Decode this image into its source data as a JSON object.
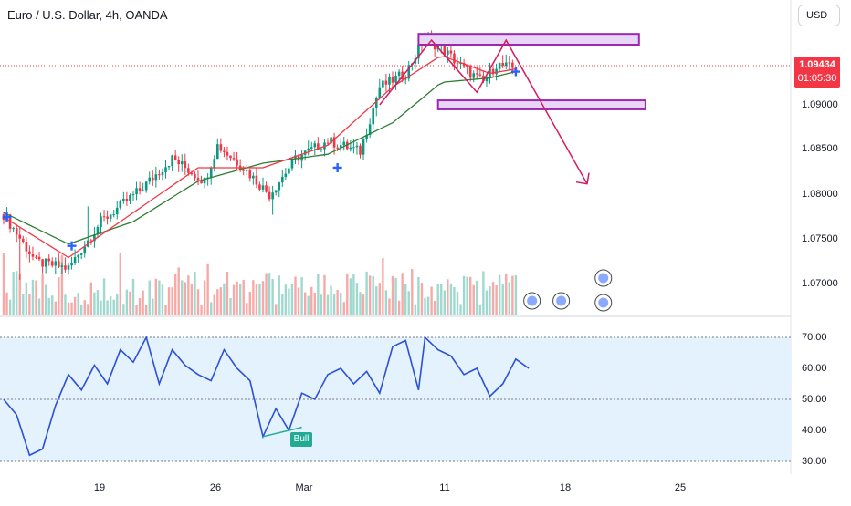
{
  "header": {
    "title": "Euro / U.S. Dollar, 4h, OANDA",
    "currency_button": "USD"
  },
  "price_badge": {
    "price": "1.09434",
    "countdown": "01:05:30",
    "color": "#f23645"
  },
  "colors": {
    "candle_up": "#089981",
    "candle_down": "#f23645",
    "ma_fast": "#f23645",
    "ma_slow": "#2e7d32",
    "rsi_line": "#2d50d6",
    "rsi_band": "#e3f2fd",
    "zone_border": "#9c27b0",
    "zone_fill": "#e8d6f7",
    "arrow": "#d81b60"
  },
  "chart_data": [
    {
      "type": "candlestick",
      "title": "Euro / U.S. Dollar, 4h, OANDA",
      "symbol": "EURUSD",
      "y_ticks": [
        "1.09000",
        "1.08500",
        "1.08000",
        "1.07500",
        "1.07000"
      ],
      "ylim": [
        1.0645,
        1.1005
      ],
      "x_ticks": [
        "19",
        "26",
        "Mar",
        "11",
        "18",
        "25"
      ],
      "current_price": 1.09434,
      "trend_path": [
        {
          "bar": 0,
          "close": 1.0778
        },
        {
          "bar": 10,
          "close": 1.0725
        },
        {
          "bar": 20,
          "close": 1.0718
        },
        {
          "bar": 30,
          "close": 1.077
        },
        {
          "bar": 42,
          "close": 1.0805
        },
        {
          "bar": 52,
          "close": 1.084
        },
        {
          "bar": 62,
          "close": 1.0815
        },
        {
          "bar": 66,
          "close": 1.0855
        },
        {
          "bar": 74,
          "close": 1.083
        },
        {
          "bar": 82,
          "close": 1.08
        },
        {
          "bar": 90,
          "close": 1.084
        },
        {
          "bar": 100,
          "close": 1.086
        },
        {
          "bar": 110,
          "close": 1.0848
        },
        {
          "bar": 116,
          "close": 1.092
        },
        {
          "bar": 124,
          "close": 1.0935
        },
        {
          "bar": 130,
          "close": 1.0975
        },
        {
          "bar": 136,
          "close": 1.096
        },
        {
          "bar": 142,
          "close": 1.094
        },
        {
          "bar": 148,
          "close": 1.0925
        },
        {
          "bar": 152,
          "close": 1.0945
        },
        {
          "bar": 158,
          "close": 1.094
        }
      ],
      "ma_fast_path": [
        {
          "bar": 0,
          "value": 1.0775
        },
        {
          "bar": 20,
          "value": 1.073
        },
        {
          "bar": 40,
          "value": 1.078
        },
        {
          "bar": 60,
          "value": 1.083
        },
        {
          "bar": 80,
          "value": 1.083
        },
        {
          "bar": 100,
          "value": 1.0855
        },
        {
          "bar": 120,
          "value": 1.092
        },
        {
          "bar": 135,
          "value": 1.0955
        },
        {
          "bar": 150,
          "value": 1.0935
        },
        {
          "bar": 158,
          "value": 1.094
        }
      ],
      "ma_slow_path": [
        {
          "bar": 0,
          "value": 1.078
        },
        {
          "bar": 20,
          "value": 1.0745
        },
        {
          "bar": 40,
          "value": 1.077
        },
        {
          "bar": 60,
          "value": 1.0815
        },
        {
          "bar": 80,
          "value": 1.0835
        },
        {
          "bar": 100,
          "value": 1.0845
        },
        {
          "bar": 120,
          "value": 1.088
        },
        {
          "bar": 135,
          "value": 1.0925
        },
        {
          "bar": 150,
          "value": 1.093
        },
        {
          "bar": 158,
          "value": 1.0937
        }
      ],
      "zones": [
        {
          "name": "resistance",
          "from_bar": 128,
          "to_bar": 196,
          "low": 1.0967,
          "high": 1.0979
        },
        {
          "name": "support",
          "from_bar": 134,
          "to_bar": 198,
          "low": 1.0895,
          "high": 1.0905
        }
      ],
      "pattern_lines": [
        {
          "bar": 116,
          "price": 1.09
        },
        {
          "bar": 132,
          "price": 1.0972
        },
        {
          "bar": 146,
          "price": 1.0914
        },
        {
          "bar": 155,
          "price": 1.0972
        },
        {
          "bar": 180,
          "price": 1.0812
        }
      ]
    },
    {
      "type": "line",
      "name": "RSI",
      "y_ticks": [
        "70.00",
        "60.00",
        "50.00",
        "40.00",
        "30.00"
      ],
      "ylim": [
        30,
        70
      ],
      "band": [
        30,
        70
      ],
      "label": "Bull",
      "points": [
        {
          "bar": 0,
          "value": 50
        },
        {
          "bar": 4,
          "value": 45
        },
        {
          "bar": 8,
          "value": 32
        },
        {
          "bar": 12,
          "value": 34
        },
        {
          "bar": 16,
          "value": 48
        },
        {
          "bar": 20,
          "value": 58
        },
        {
          "bar": 24,
          "value": 53
        },
        {
          "bar": 28,
          "value": 61
        },
        {
          "bar": 32,
          "value": 55
        },
        {
          "bar": 36,
          "value": 66
        },
        {
          "bar": 40,
          "value": 62
        },
        {
          "bar": 44,
          "value": 70
        },
        {
          "bar": 48,
          "value": 55
        },
        {
          "bar": 52,
          "value": 66
        },
        {
          "bar": 56,
          "value": 61
        },
        {
          "bar": 60,
          "value": 58
        },
        {
          "bar": 64,
          "value": 56
        },
        {
          "bar": 68,
          "value": 66
        },
        {
          "bar": 72,
          "value": 60
        },
        {
          "bar": 76,
          "value": 56
        },
        {
          "bar": 80,
          "value": 38
        },
        {
          "bar": 84,
          "value": 47
        },
        {
          "bar": 88,
          "value": 40
        },
        {
          "bar": 92,
          "value": 52
        },
        {
          "bar": 96,
          "value": 50
        },
        {
          "bar": 100,
          "value": 58
        },
        {
          "bar": 104,
          "value": 60
        },
        {
          "bar": 108,
          "value": 55
        },
        {
          "bar": 112,
          "value": 59
        },
        {
          "bar": 116,
          "value": 52
        },
        {
          "bar": 120,
          "value": 67
        },
        {
          "bar": 124,
          "value": 69
        },
        {
          "bar": 128,
          "value": 53
        },
        {
          "bar": 130,
          "value": 70
        },
        {
          "bar": 134,
          "value": 66
        },
        {
          "bar": 138,
          "value": 64
        },
        {
          "bar": 142,
          "value": 58
        },
        {
          "bar": 146,
          "value": 60
        },
        {
          "bar": 150,
          "value": 51
        },
        {
          "bar": 154,
          "value": 55
        },
        {
          "bar": 158,
          "value": 63
        },
        {
          "bar": 162,
          "value": 60
        }
      ]
    }
  ]
}
